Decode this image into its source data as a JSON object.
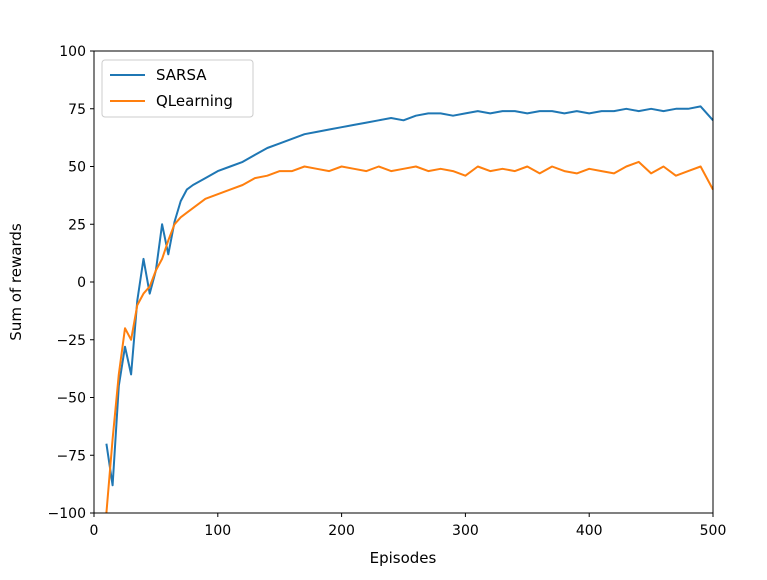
{
  "chart_data": {
    "type": "line",
    "title": "",
    "xlabel": "Episodes",
    "ylabel": "Sum of rewards",
    "xlim": [
      0,
      500
    ],
    "ylim": [
      -100,
      100
    ],
    "xticks": [
      "0",
      "100",
      "200",
      "300",
      "400",
      "500"
    ],
    "yticks": [
      "−100",
      "−75",
      "−50",
      "−25",
      "0",
      "25",
      "50",
      "75",
      "100"
    ],
    "grid": false,
    "legend_position": "upper-left",
    "x": [
      10,
      15,
      20,
      25,
      30,
      35,
      40,
      45,
      50,
      55,
      60,
      65,
      70,
      75,
      80,
      90,
      100,
      110,
      120,
      130,
      140,
      150,
      160,
      170,
      180,
      190,
      200,
      210,
      220,
      230,
      240,
      250,
      260,
      270,
      280,
      290,
      300,
      310,
      320,
      330,
      340,
      350,
      360,
      370,
      380,
      390,
      400,
      410,
      420,
      430,
      440,
      450,
      460,
      470,
      480,
      490,
      500
    ],
    "series": [
      {
        "name": "SARSA",
        "color": "#1f77b4",
        "values": [
          -70,
          -88,
          -45,
          -28,
          -40,
          -8,
          10,
          -5,
          5,
          25,
          12,
          26,
          35,
          40,
          42,
          45,
          48,
          50,
          52,
          55,
          58,
          60,
          62,
          64,
          65,
          66,
          67,
          68,
          69,
          70,
          71,
          70,
          72,
          73,
          73,
          72,
          73,
          74,
          73,
          74,
          74,
          73,
          74,
          74,
          73,
          74,
          73,
          74,
          74,
          75,
          74,
          75,
          74,
          75,
          75,
          76,
          70
        ]
      },
      {
        "name": "QLearning",
        "color": "#ff7f0e",
        "values": [
          -100,
          -68,
          -40,
          -20,
          -25,
          -10,
          -5,
          -2,
          5,
          10,
          18,
          25,
          28,
          30,
          32,
          36,
          38,
          40,
          42,
          45,
          46,
          48,
          48,
          50,
          49,
          48,
          50,
          49,
          48,
          50,
          48,
          49,
          50,
          48,
          49,
          48,
          46,
          50,
          48,
          49,
          48,
          50,
          47,
          50,
          48,
          47,
          49,
          48,
          47,
          50,
          52,
          47,
          50,
          46,
          48,
          50,
          40
        ]
      }
    ]
  }
}
